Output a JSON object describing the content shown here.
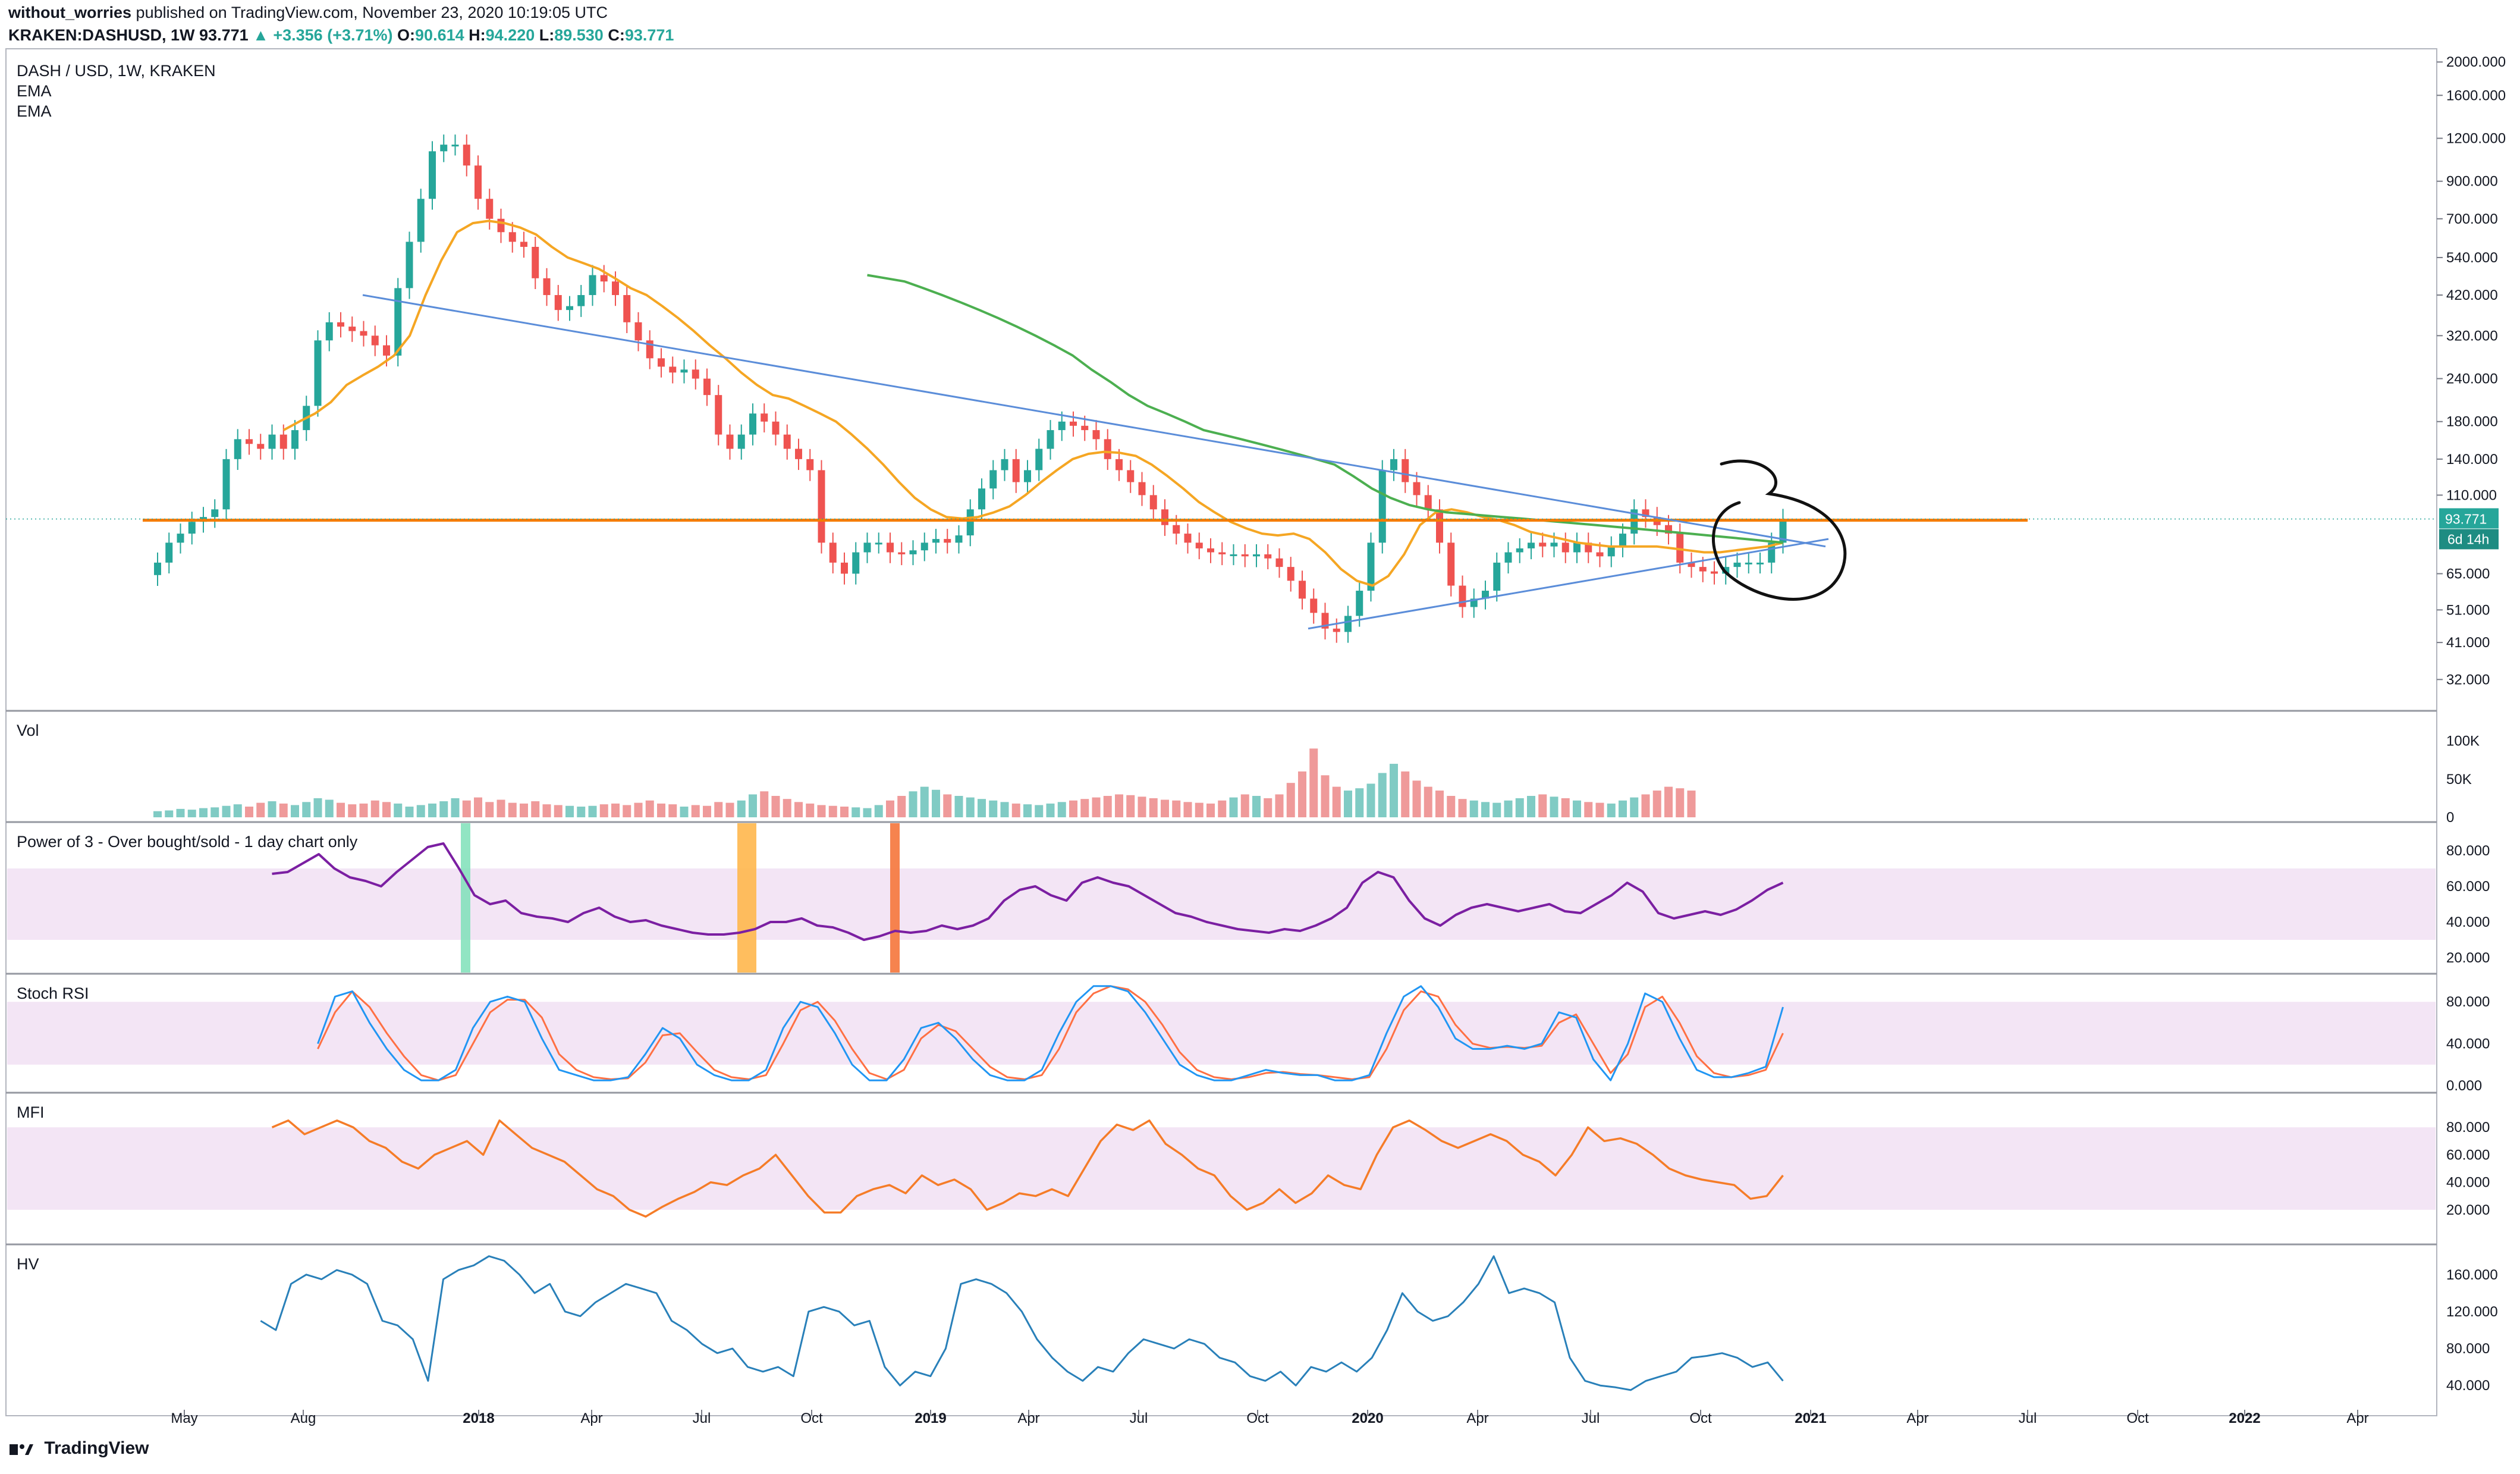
{
  "header": {
    "author": "without_worries",
    "published": "published on TradingView.com, November 23, 2020 10:19:05 UTC",
    "symbol_full": "KRAKEN:DASHUSD, 1W",
    "last": "93.771",
    "change": "▲ +3.356 (+3.71%)",
    "o_label": "O:",
    "o_value": "90.614",
    "h_label": "H:",
    "h_value": "94.220",
    "l_label": "L:",
    "l_value": "89.530",
    "c_label": "C:",
    "c_value": "93.771"
  },
  "footer": {
    "brand": "TradingView"
  },
  "colors": {
    "up": "#26a69a",
    "down": "#ef5350",
    "ema_fast": "#f5a623",
    "ema_slow": "#4caf50",
    "support": "#f57c00",
    "trendline": "#5b8dd9",
    "power3": "#7b1fa2",
    "stoch_k": "#2196f3",
    "stoch_d": "#ff7043",
    "mfi": "#f57c28",
    "hv": "#2980b9",
    "band": "#f3e5f5"
  },
  "chart_data": [
    {
      "type": "candlestick",
      "title": "DASH / USD, 1W, KRAKEN",
      "legend": [
        "EMA",
        "EMA"
      ],
      "y_scale": "log",
      "ylim": [
        27,
        2100
      ],
      "y_ticks": [
        2000,
        1600,
        1200,
        900,
        700,
        540,
        420,
        320,
        240,
        180,
        140,
        110,
        65,
        51,
        41,
        32
      ],
      "y_tick_labels": [
        "2000.000",
        "1600.000",
        "1200.000",
        "900.000",
        "700.000",
        "540.000",
        "420.000",
        "320.000",
        "240.000",
        "180.000",
        "140.000",
        "110.000",
        "65.000",
        "51.000",
        "41.000",
        "32.000"
      ],
      "last_price_label": "93.771",
      "countdown_label": "6d 14h",
      "x_tick_labels": [
        "May",
        "Aug",
        "2018",
        "Apr",
        "Jul",
        "Oct",
        "2019",
        "Apr",
        "Jul",
        "Oct",
        "2020",
        "Apr",
        "Jul",
        "Oct",
        "2021",
        "Apr",
        "Jul",
        "Oct",
        "2022",
        "Apr"
      ],
      "close": [
        70,
        80,
        85,
        92,
        95,
        100,
        140,
        160,
        155,
        150,
        165,
        150,
        170,
        200,
        310,
        350,
        340,
        330,
        320,
        300,
        280,
        440,
        600,
        800,
        1100,
        1150,
        1150,
        1000,
        800,
        700,
        640,
        600,
        580,
        470,
        420,
        380,
        390,
        420,
        480,
        460,
        420,
        350,
        310,
        275,
        260,
        250,
        255,
        240,
        215,
        165,
        150,
        165,
        190,
        180,
        165,
        150,
        140,
        130,
        80,
        70,
        65,
        75,
        80,
        80,
        75,
        74,
        76,
        80,
        82,
        80,
        84,
        100,
        115,
        130,
        140,
        120,
        130,
        150,
        170,
        180,
        175,
        170,
        160,
        140,
        130,
        120,
        110,
        100,
        90,
        85,
        80,
        77,
        75,
        74,
        74,
        73,
        74,
        72,
        68,
        62,
        55,
        50,
        45,
        44,
        49,
        58,
        80,
        130,
        140,
        120,
        110,
        100,
        80,
        60,
        52,
        55,
        58,
        70,
        75,
        77,
        80,
        78,
        80,
        75,
        80,
        75,
        73,
        78,
        85,
        100,
        95,
        90,
        85,
        70,
        68,
        66,
        65,
        68,
        70,
        70,
        70,
        80,
        93.771
      ],
      "ema_fast": [
        170,
        180,
        190,
        205,
        230,
        245,
        260,
        280,
        320,
        420,
        530,
        640,
        680,
        690,
        680,
        660,
        630,
        580,
        540,
        520,
        500,
        470,
        440,
        420,
        390,
        360,
        330,
        300,
        275,
        250,
        230,
        215,
        210,
        200,
        190,
        180,
        165,
        150,
        135,
        120,
        108,
        100,
        95,
        94,
        95,
        98,
        102,
        110,
        120,
        130,
        140,
        145,
        147,
        146,
        143,
        135,
        125,
        115,
        105,
        98,
        92,
        88,
        85,
        84,
        85,
        82,
        75,
        67,
        62,
        60,
        64,
        74,
        90,
        98,
        100,
        98,
        95,
        93,
        90,
        86,
        84,
        82,
        80,
        79,
        78,
        78,
        78,
        78,
        77,
        76,
        75,
        75,
        76,
        77,
        78,
        80
      ],
      "ema_slow": [
        480,
        470,
        460,
        440,
        420,
        400,
        380,
        360,
        340,
        320,
        300,
        280,
        255,
        235,
        215,
        200,
        190,
        180,
        170,
        165,
        160,
        155,
        150,
        145,
        140,
        135,
        125,
        115,
        108,
        103,
        100,
        98,
        97,
        96,
        95,
        94,
        93,
        92,
        91,
        90,
        89,
        88,
        87,
        86,
        85,
        84,
        83,
        82,
        81,
        80
      ],
      "support_level": 93,
      "triangle": {
        "upper": [
          "2017-09 420",
          "2021-01 78"
        ],
        "lower": [
          "2019-11 45",
          "2021-01 80"
        ]
      },
      "pattern": "symmetrical triangle"
    },
    {
      "type": "bar",
      "title": "Vol",
      "y_tick_labels": [
        "100K",
        "50K",
        "0"
      ],
      "values": [
        8,
        9,
        11,
        10,
        12,
        13,
        15,
        17,
        14,
        19,
        21,
        18,
        16,
        20,
        25,
        23,
        19,
        17,
        18,
        22,
        20,
        18,
        14,
        16,
        18,
        21,
        25,
        22,
        26,
        20,
        23,
        19,
        18,
        21,
        17,
        16,
        15,
        14,
        15,
        17,
        18,
        16,
        19,
        22,
        18,
        17,
        14,
        16,
        15,
        20,
        19,
        22,
        30,
        34,
        28,
        24,
        20,
        18,
        16,
        15,
        14,
        13,
        12,
        16,
        22,
        28,
        34,
        40,
        36,
        30,
        28,
        26,
        24,
        22,
        20,
        18,
        17,
        16,
        18,
        20,
        22,
        24,
        26,
        28,
        30,
        29,
        27,
        25,
        23,
        22,
        20,
        19,
        18,
        22,
        26,
        30,
        28,
        25,
        30,
        45,
        60,
        90,
        55,
        40,
        35,
        38,
        44,
        58,
        70,
        60,
        48,
        40,
        35,
        28,
        24,
        22,
        20,
        19,
        22,
        25,
        28,
        30,
        27,
        25,
        22,
        20,
        19,
        18,
        22,
        26,
        30,
        35,
        40,
        38,
        35
      ]
    },
    {
      "type": "line",
      "title": "Power of 3 - Over bought/sold - 1 day chart only",
      "ylim": [
        15,
        92
      ],
      "y_tick_labels": [
        "80.000",
        "60.000",
        "40.000",
        "20.000"
      ],
      "band": [
        30,
        70
      ],
      "values": [
        67,
        68,
        73,
        78,
        70,
        65,
        63,
        60,
        68,
        75,
        82,
        84,
        70,
        55,
        50,
        52,
        45,
        43,
        42,
        40,
        45,
        48,
        43,
        40,
        41,
        38,
        36,
        34,
        33,
        33,
        34,
        36,
        40,
        40,
        42,
        38,
        37,
        34,
        30,
        32,
        35,
        34,
        35,
        38,
        36,
        38,
        42,
        52,
        58,
        60,
        55,
        52,
        62,
        65,
        62,
        60,
        55,
        50,
        45,
        43,
        40,
        38,
        36,
        35,
        34,
        36,
        35,
        38,
        42,
        48,
        62,
        68,
        65,
        52,
        42,
        38,
        44,
        48,
        50,
        48,
        46,
        48,
        50,
        46,
        45,
        50,
        55,
        62,
        57,
        45,
        42,
        44,
        46,
        44,
        47,
        52,
        58,
        62
      ]
    },
    {
      "type": "line",
      "title": "Stoch RSI",
      "ylim": [
        0,
        100
      ],
      "y_tick_labels": [
        "80.000",
        "40.000",
        "0.000"
      ],
      "band": [
        20,
        80
      ],
      "k": [
        40,
        85,
        90,
        60,
        35,
        15,
        5,
        5,
        15,
        55,
        80,
        85,
        80,
        45,
        15,
        10,
        5,
        5,
        8,
        30,
        55,
        45,
        20,
        10,
        5,
        5,
        15,
        55,
        80,
        75,
        50,
        20,
        5,
        5,
        25,
        55,
        60,
        45,
        25,
        10,
        5,
        5,
        15,
        50,
        80,
        95,
        95,
        90,
        70,
        45,
        20,
        10,
        5,
        5,
        10,
        15,
        12,
        10,
        10,
        5,
        5,
        10,
        50,
        85,
        95,
        75,
        45,
        35,
        35,
        38,
        35,
        40,
        70,
        65,
        25,
        5,
        40,
        88,
        80,
        45,
        15,
        8,
        8,
        12,
        18,
        75
      ],
      "d": [
        35,
        70,
        90,
        75,
        50,
        28,
        10,
        5,
        10,
        40,
        70,
        82,
        82,
        65,
        30,
        15,
        8,
        6,
        7,
        22,
        48,
        50,
        32,
        15,
        8,
        6,
        10,
        40,
        72,
        80,
        62,
        35,
        12,
        6,
        15,
        45,
        58,
        52,
        35,
        18,
        8,
        6,
        10,
        35,
        70,
        88,
        95,
        92,
        80,
        58,
        32,
        15,
        8,
        6,
        8,
        12,
        13,
        11,
        10,
        8,
        6,
        8,
        35,
        72,
        90,
        85,
        58,
        40,
        36,
        37,
        36,
        38,
        60,
        68,
        40,
        12,
        30,
        75,
        85,
        60,
        28,
        12,
        8,
        10,
        15,
        50
      ]
    },
    {
      "type": "line",
      "title": "MFI",
      "ylim": [
        0,
        100
      ],
      "y_tick_labels": [
        "80.000",
        "60.000",
        "40.000",
        "20.000"
      ],
      "band": [
        20,
        80
      ],
      "values": [
        80,
        85,
        75,
        80,
        85,
        80,
        70,
        65,
        55,
        50,
        60,
        65,
        70,
        60,
        85,
        75,
        65,
        60,
        55,
        45,
        35,
        30,
        20,
        15,
        22,
        28,
        33,
        40,
        38,
        45,
        50,
        60,
        45,
        30,
        18,
        18,
        30,
        35,
        38,
        32,
        45,
        38,
        42,
        35,
        20,
        25,
        32,
        30,
        35,
        30,
        50,
        70,
        82,
        78,
        85,
        68,
        60,
        50,
        45,
        30,
        20,
        25,
        35,
        25,
        32,
        45,
        38,
        35,
        60,
        80,
        85,
        78,
        70,
        65,
        70,
        75,
        70,
        60,
        55,
        45,
        60,
        80,
        70,
        72,
        68,
        60,
        50,
        45,
        42,
        40,
        38,
        28,
        30,
        45
      ]
    },
    {
      "type": "line",
      "title": "HV",
      "ylim": [
        15,
        185
      ],
      "y_tick_labels": [
        "160.000",
        "120.000",
        "80.000",
        "40.000"
      ],
      "values": [
        110,
        100,
        150,
        160,
        155,
        165,
        160,
        150,
        110,
        105,
        90,
        45,
        155,
        165,
        170,
        180,
        175,
        160,
        140,
        150,
        120,
        115,
        130,
        140,
        150,
        145,
        140,
        110,
        100,
        85,
        75,
        80,
        60,
        55,
        60,
        50,
        120,
        125,
        120,
        105,
        110,
        60,
        40,
        55,
        50,
        80,
        150,
        155,
        150,
        140,
        120,
        90,
        70,
        55,
        45,
        60,
        55,
        75,
        90,
        85,
        80,
        90,
        85,
        70,
        65,
        50,
        45,
        55,
        40,
        60,
        55,
        65,
        55,
        70,
        100,
        140,
        120,
        110,
        115,
        130,
        150,
        180,
        140,
        145,
        140,
        130,
        70,
        45,
        40,
        38,
        35,
        45,
        50,
        55,
        70,
        72,
        75,
        70,
        60,
        65,
        45
      ]
    }
  ]
}
